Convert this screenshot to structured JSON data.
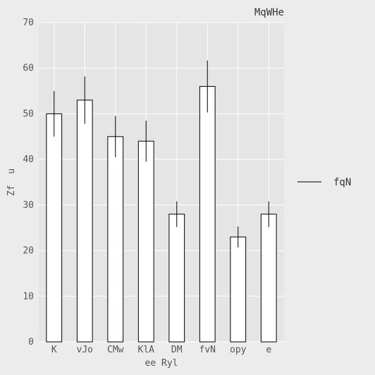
{
  "chart_data": {
    "type": "bar",
    "title": "MqWHe",
    "xlabel": "ee Ryl",
    "ylabel": "Zf  u",
    "categories": [
      "K",
      "vJo",
      "CMw",
      "KlA",
      "DM",
      "fvN",
      "opy",
      "e"
    ],
    "series": [
      {
        "name": "fqN",
        "values": [
          50,
          53,
          45,
          44,
          28,
          56,
          23,
          28
        ],
        "errors": [
          5,
          5.2,
          4.5,
          4.5,
          2.8,
          5.7,
          2.3,
          2.8
        ]
      }
    ],
    "ylim": [
      0,
      70
    ],
    "yticks": [
      0,
      10,
      20,
      30,
      40,
      50,
      60,
      70
    ],
    "grid": true,
    "legend_position": "right"
  },
  "colors": {
    "background": "#ececec",
    "plot_background": "#e5e5e5",
    "grid": "#ffffff",
    "bar_fill": "#ffffff",
    "bar_edge": "#000000",
    "error_bar": "#000000"
  }
}
